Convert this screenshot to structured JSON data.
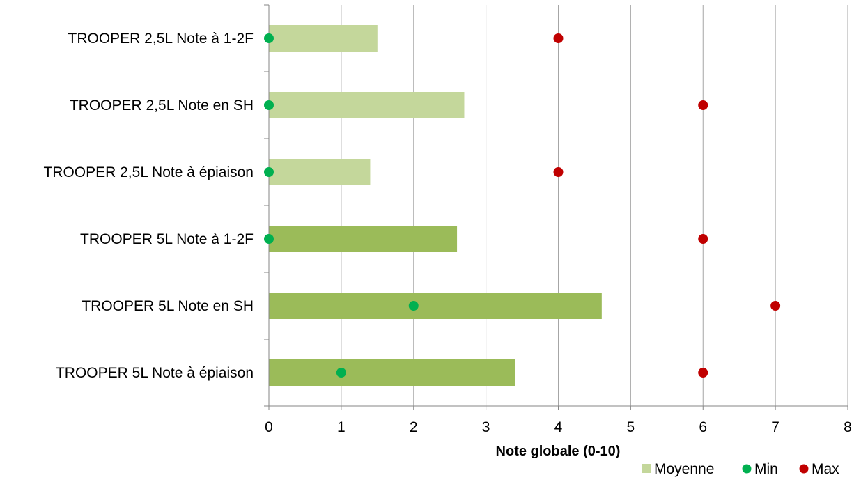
{
  "chart_data": {
    "type": "bar",
    "orientation": "horizontal",
    "categories": [
      "TROOPER 2,5L Note à 1-2F",
      "TROOPER 2,5L Note en SH",
      "TROOPER 2,5L Note à épiaison",
      "TROOPER 5L Note à 1-2F",
      "TROOPER 5L Note en SH",
      "TROOPER 5L Note à épiaison"
    ],
    "series": [
      {
        "name": "Moyenne",
        "kind": "bar",
        "values": [
          1.5,
          2.7,
          1.4,
          2.6,
          4.6,
          3.4
        ],
        "colors": [
          "#c4d79b",
          "#c4d79b",
          "#c4d79b",
          "#9bbb59",
          "#9bbb59",
          "#9bbb59"
        ]
      },
      {
        "name": "Min",
        "kind": "marker",
        "values": [
          0,
          0,
          0,
          0,
          2,
          1
        ],
        "color": "#00b050"
      },
      {
        "name": "Max",
        "kind": "marker",
        "values": [
          4,
          6,
          4,
          6,
          7,
          6
        ],
        "color": "#c00000"
      }
    ],
    "xlabel": "Note globale (0-10)",
    "ylabel": "",
    "xlim": [
      0,
      8
    ],
    "xticks": [
      "0",
      "1",
      "2",
      "3",
      "4",
      "5",
      "6",
      "7",
      "8"
    ],
    "grid": "vertical",
    "legend": {
      "position": "bottom-right",
      "items": [
        {
          "label": "Moyenne",
          "shape": "square",
          "color": "#c4d79b"
        },
        {
          "label": "Min",
          "shape": "circle",
          "color": "#00b050"
        },
        {
          "label": "Max",
          "shape": "circle",
          "color": "#c00000"
        }
      ]
    }
  }
}
